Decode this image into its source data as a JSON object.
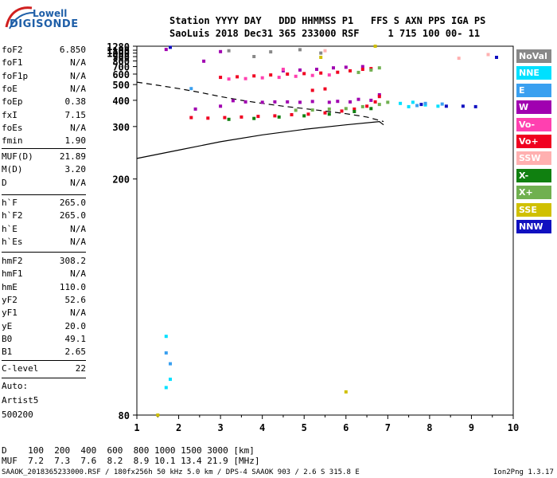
{
  "logo": {
    "line1": "Lowell",
    "line2": "DIGISONDE"
  },
  "header": {
    "line1": "Station YYYY DAY   DDD HHMMSS P1   FFS S AXN PPS IGA PS",
    "line2": "SaoLuis 2018 Dec31 365 233000 RSF     1 715 100 00- 11"
  },
  "params_group1": [
    {
      "name": "foF2",
      "value": "6.850"
    },
    {
      "name": "foF1",
      "value": "N/A"
    },
    {
      "name": "foF1p",
      "value": "N/A"
    },
    {
      "name": "foE",
      "value": "N/A"
    },
    {
      "name": "foEp",
      "value": "0.38"
    },
    {
      "name": "fxI",
      "value": "7.15"
    },
    {
      "name": "foEs",
      "value": "N/A"
    },
    {
      "name": "fmin",
      "value": "1.90"
    }
  ],
  "params_group2": [
    {
      "name": "MUF(D)",
      "value": "21.89"
    },
    {
      "name": "M(D)",
      "value": "3.20"
    },
    {
      "name": "D",
      "value": "N/A"
    }
  ],
  "params_group3": [
    {
      "name": "h`F",
      "value": "265.0"
    },
    {
      "name": "h`F2",
      "value": "265.0"
    },
    {
      "name": "h`E",
      "value": "N/A"
    },
    {
      "name": "h`Es",
      "value": "N/A"
    }
  ],
  "params_group4": [
    {
      "name": "hmF2",
      "value": "308.2"
    },
    {
      "name": "hmF1",
      "value": "N/A"
    },
    {
      "name": "hmE",
      "value": "110.0"
    },
    {
      "name": "yF2",
      "value": "52.6"
    },
    {
      "name": "yF1",
      "value": "N/A"
    },
    {
      "name": "yE",
      "value": "20.0"
    },
    {
      "name": "B0",
      "value": "49.1"
    },
    {
      "name": "B1",
      "value": "2.65"
    }
  ],
  "params_group5": [
    {
      "name": "C-level",
      "value": "22"
    }
  ],
  "auto": {
    "line1": "Auto:",
    "line2": "Artist5",
    "line3": "500200"
  },
  "legend": [
    {
      "label": "NoVal",
      "color": "#888888"
    },
    {
      "label": "NNE",
      "color": "#00e0ff"
    },
    {
      "label": "E",
      "color": "#3aa0f0"
    },
    {
      "label": "W",
      "color": "#a000b0"
    },
    {
      "label": "Vo-",
      "color": "#ff40b0"
    },
    {
      "label": "Vo+",
      "color": "#f00020"
    },
    {
      "label": "SSW",
      "color": "#ffb0b0"
    },
    {
      "label": "X-",
      "color": "#108010"
    },
    {
      "label": "X+",
      "color": "#70b050"
    },
    {
      "label": "SSE",
      "color": "#d0c000"
    },
    {
      "label": "NNW",
      "color": "#1010c0"
    }
  ],
  "footer": {
    "d_line": "D    100  200  400  600  800 1000 1500 3000 [km]",
    "muf_line": "MUF  7.2  7.3  7.6  8.2  8.9 10.1 13.4 21.9 [MHz]",
    "bottom_left": "SAAOK_2018365233000.RSF / 180fx256h 50 kHz 5.0 km / DPS-4 SAAOK 903 / 2.6 S 315.8 E",
    "bottom_right": "Ion2Png 1.3.17"
  },
  "chart_data": {
    "type": "scatter",
    "xlim": [
      1,
      10
    ],
    "ylim": [
      80,
      1280
    ],
    "x_ticks": [
      1,
      2,
      3,
      4,
      5,
      6,
      7,
      8,
      9,
      10
    ],
    "y_ticks": [
      80,
      200,
      300,
      400,
      500,
      600,
      700,
      800,
      900,
      1000,
      1100,
      1280
    ],
    "grid": false,
    "legend_placement": "right",
    "x_scale": "linear",
    "y_scale": "reciprocal",
    "series": [
      {
        "name": "W",
        "color": "#a000b0",
        "points": [
          [
            4.6,
            392
          ],
          [
            4.9,
            390
          ],
          [
            5.2,
            394
          ],
          [
            5.6,
            390
          ],
          [
            5.8,
            395
          ],
          [
            6.1,
            392
          ],
          [
            6.3,
            405
          ],
          [
            6.6,
            400
          ],
          [
            6.8,
            430
          ],
          [
            3.3,
            398
          ],
          [
            3.6,
            392
          ],
          [
            4.0,
            390
          ],
          [
            4.3,
            392
          ],
          [
            3.0,
            372
          ],
          [
            2.4,
            360
          ],
          [
            4.5,
            640
          ],
          [
            4.9,
            650
          ],
          [
            5.3,
            660
          ],
          [
            5.7,
            680
          ],
          [
            6.0,
            690
          ],
          [
            6.4,
            700
          ],
          [
            1.7,
            1130
          ],
          [
            2.6,
            795
          ],
          [
            3.0,
            1050
          ]
        ]
      },
      {
        "name": "Vo+",
        "color": "#f00020",
        "points": [
          [
            2.3,
            328
          ],
          [
            2.7,
            326
          ],
          [
            3.1,
            328
          ],
          [
            3.5,
            330
          ],
          [
            3.9,
            332
          ],
          [
            4.3,
            334
          ],
          [
            4.7,
            338
          ],
          [
            5.1,
            340
          ],
          [
            5.5,
            345
          ],
          [
            5.9,
            352
          ],
          [
            6.2,
            360
          ],
          [
            6.5,
            372
          ],
          [
            6.7,
            392
          ],
          [
            6.8,
            420
          ],
          [
            3.0,
            565
          ],
          [
            3.4,
            570
          ],
          [
            3.8,
            580
          ],
          [
            4.2,
            590
          ],
          [
            4.6,
            600
          ],
          [
            5.0,
            605
          ],
          [
            5.4,
            612
          ],
          [
            5.8,
            622
          ],
          [
            6.1,
            640
          ],
          [
            6.4,
            660
          ],
          [
            6.6,
            670
          ],
          [
            5.5,
            468
          ],
          [
            5.2,
            458
          ]
        ]
      },
      {
        "name": "Vo-",
        "color": "#ff40b0",
        "points": [
          [
            3.2,
            548
          ],
          [
            3.6,
            552
          ],
          [
            4.0,
            560
          ],
          [
            4.4,
            565
          ],
          [
            4.8,
            575
          ],
          [
            5.2,
            585
          ],
          [
            4.5,
            660
          ],
          [
            5.6,
            590
          ]
        ]
      },
      {
        "name": "X+",
        "color": "#70b050",
        "points": [
          [
            4.8,
            355
          ],
          [
            5.2,
            356
          ],
          [
            5.6,
            360
          ],
          [
            6.0,
            362
          ],
          [
            6.4,
            370
          ],
          [
            6.8,
            380
          ],
          [
            7.0,
            390
          ],
          [
            6.3,
            620
          ],
          [
            6.6,
            650
          ],
          [
            6.8,
            680
          ]
        ]
      },
      {
        "name": "X-",
        "color": "#108010",
        "points": [
          [
            3.2,
            322
          ],
          [
            3.8,
            325
          ],
          [
            4.4,
            330
          ],
          [
            5.0,
            334
          ],
          [
            5.6,
            340
          ],
          [
            6.2,
            350
          ],
          [
            6.6,
            362
          ]
        ]
      },
      {
        "name": "NNE",
        "color": "#00e0ff",
        "points": [
          [
            7.3,
            385
          ],
          [
            7.6,
            390
          ],
          [
            7.9,
            378
          ],
          [
            8.2,
            372
          ],
          [
            1.7,
            86
          ],
          [
            1.8,
            88
          ],
          [
            1.7,
            100
          ],
          [
            7.5,
            370
          ]
        ]
      },
      {
        "name": "E",
        "color": "#3aa0f0",
        "points": [
          [
            1.7,
            95
          ],
          [
            1.8,
            92
          ],
          [
            7.9,
            385
          ],
          [
            8.3,
            382
          ],
          [
            2.3,
            470
          ],
          [
            7.7,
            375
          ]
        ]
      },
      {
        "name": "NNW",
        "color": "#1010c0",
        "points": [
          [
            9.6,
            880
          ],
          [
            8.4,
            372
          ],
          [
            8.8,
            372
          ],
          [
            9.1,
            370
          ],
          [
            1.8,
            1225
          ],
          [
            7.8,
            380
          ]
        ]
      },
      {
        "name": "SSE",
        "color": "#d0c000",
        "points": [
          [
            6.7,
            1280
          ],
          [
            1.5,
            80
          ],
          [
            5.4,
            880
          ],
          [
            6.0,
            85
          ]
        ]
      },
      {
        "name": "SSW",
        "color": "#ffb0b0",
        "points": [
          [
            9.4,
            955
          ],
          [
            8.7,
            860
          ],
          [
            5.5,
            1080
          ]
        ]
      },
      {
        "name": "NoVal",
        "color": "#888888",
        "points": [
          [
            3.2,
            1080
          ],
          [
            4.9,
            1120
          ],
          [
            5.4,
            1000
          ],
          [
            3.8,
            900
          ],
          [
            4.2,
            1040
          ]
        ]
      }
    ],
    "curves": {
      "solid_lower": [
        [
          1,
          230
        ],
        [
          2,
          245
        ],
        [
          3,
          262
        ],
        [
          4,
          278
        ],
        [
          5,
          292
        ],
        [
          6,
          305
        ],
        [
          6.8,
          315
        ],
        [
          6.9,
          305
        ]
      ],
      "dashed_upper": [
        [
          1,
          520
        ],
        [
          1.5,
          495
        ],
        [
          2,
          470
        ],
        [
          2.5,
          445
        ],
        [
          3,
          420
        ],
        [
          3.5,
          400
        ],
        [
          4,
          385
        ],
        [
          4.5,
          372
        ],
        [
          5,
          362
        ],
        [
          5.5,
          352
        ],
        [
          6,
          342
        ],
        [
          6.5,
          330
        ],
        [
          6.9,
          315
        ]
      ]
    }
  }
}
